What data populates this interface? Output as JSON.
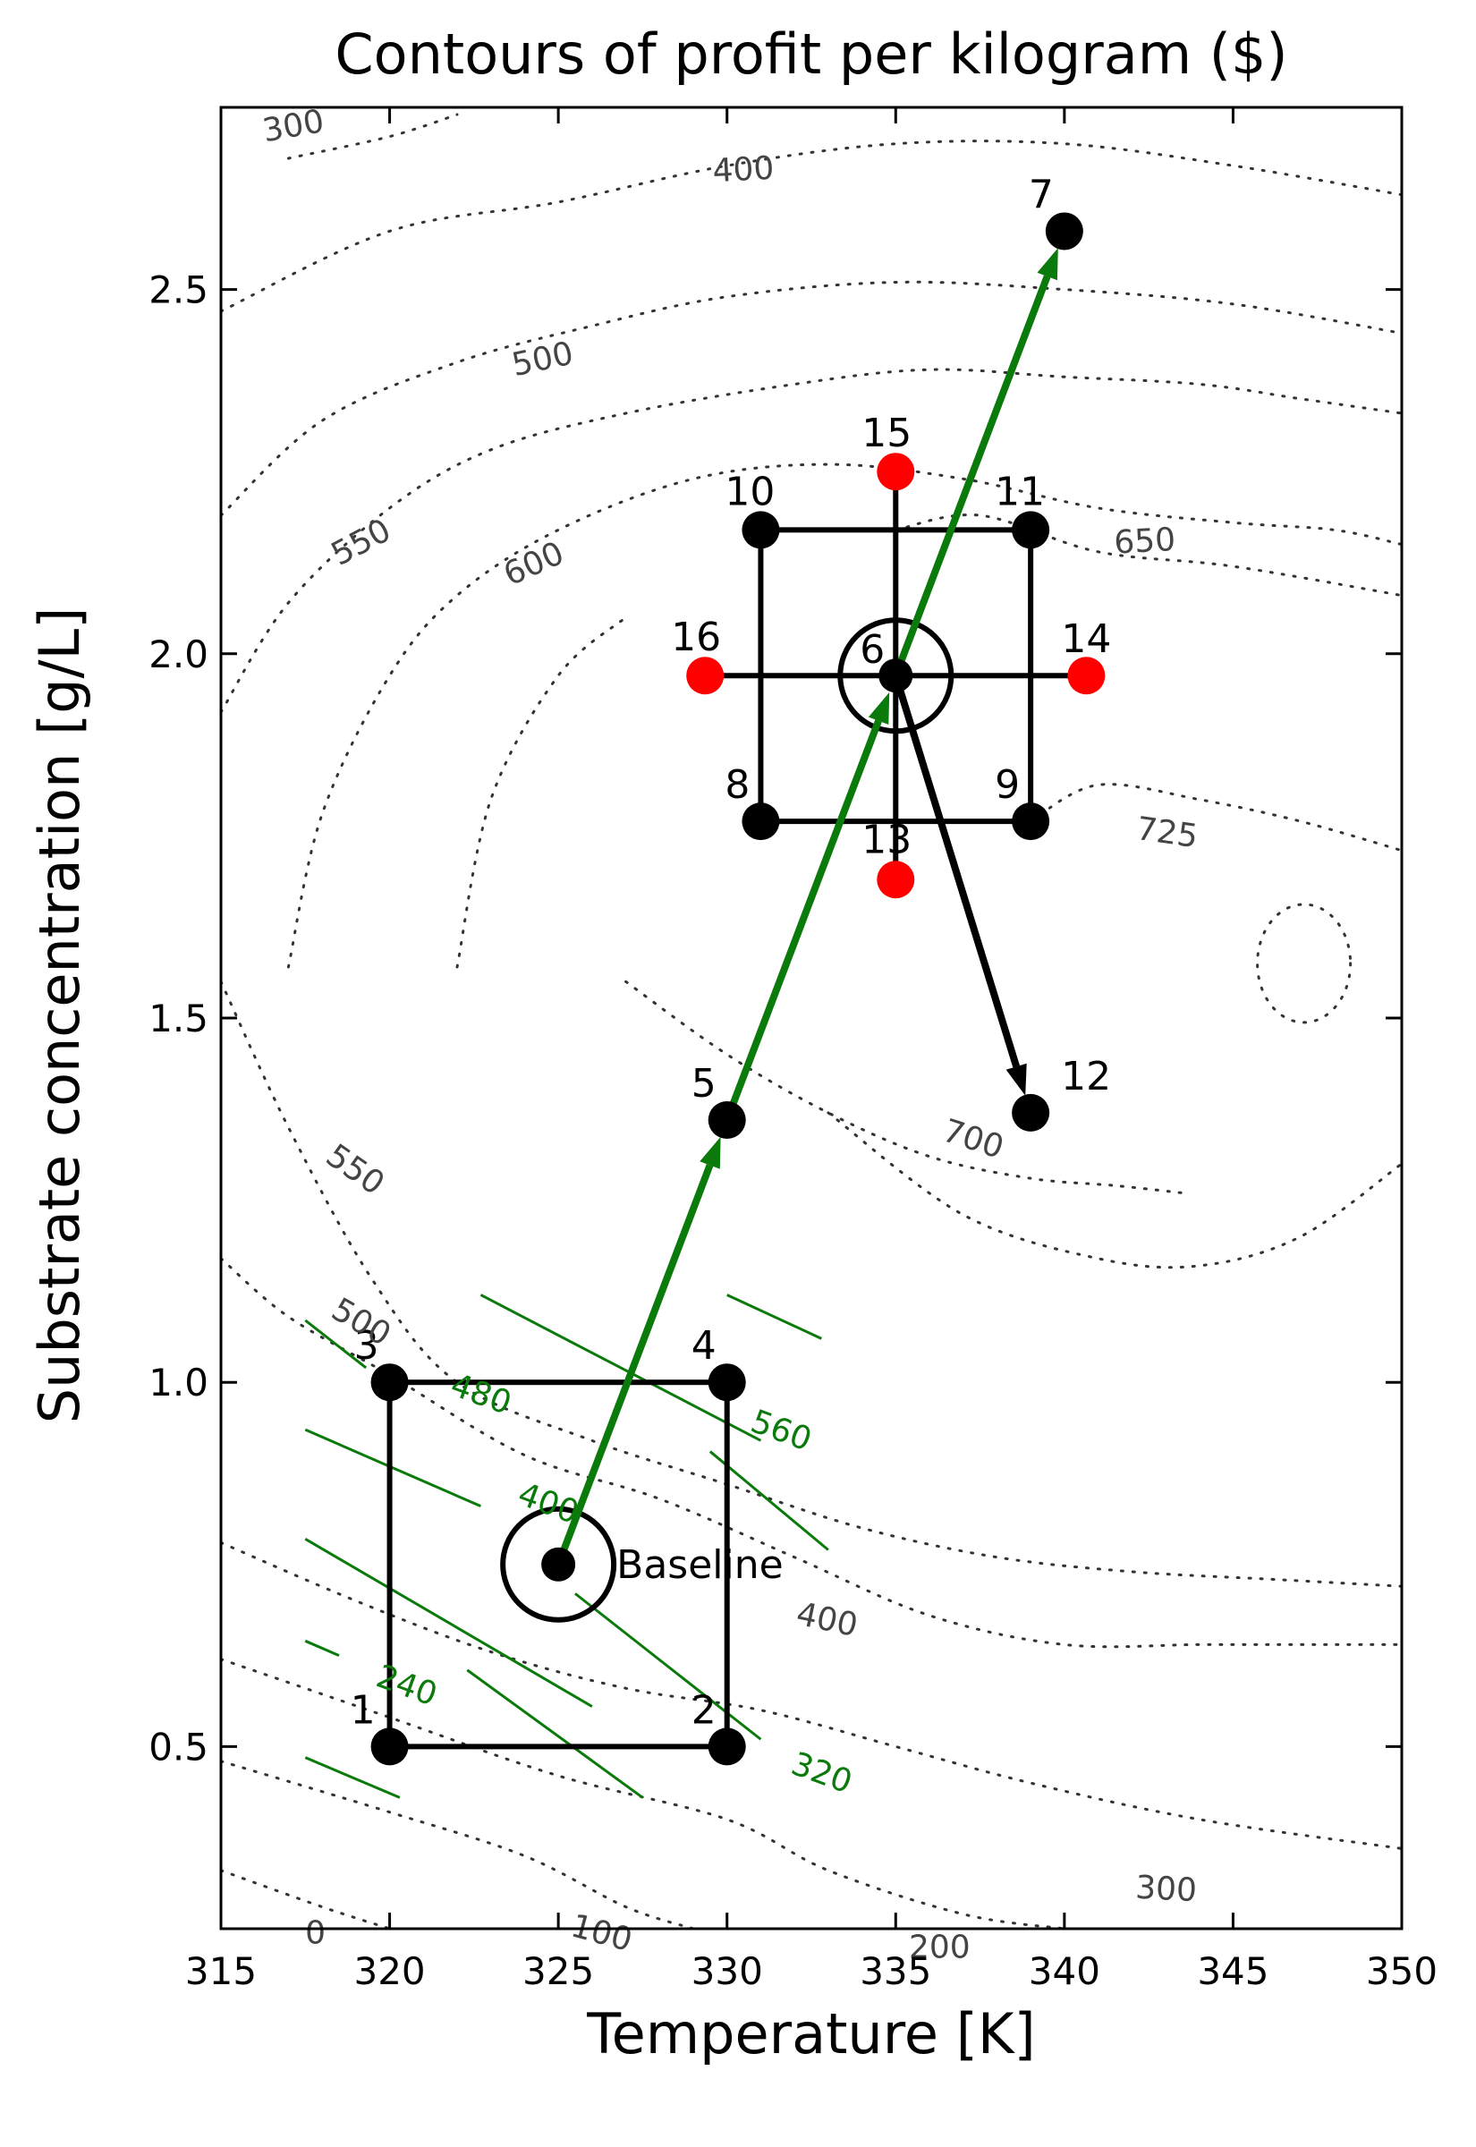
{
  "chart_data": {
    "type": "scatter",
    "title": "Contours of profit per kilogram ($)",
    "xlabel": "Temperature [K]",
    "ylabel": "Substrate concentration [g/L]",
    "xlim": [
      315,
      350
    ],
    "ylim": [
      0.25,
      2.75
    ],
    "xticks": [
      "315",
      "320",
      "325",
      "330",
      "335",
      "340",
      "345",
      "350"
    ],
    "yticks": [
      "0.5",
      "1.0",
      "1.5",
      "2.0",
      "2.5"
    ],
    "grid": false,
    "colors": {
      "factorial_point": "#000000",
      "axial_point": "#ff0000",
      "path_arrow": "#0a7a0a",
      "predicted_contour": "#0a7a0a",
      "true_contour": "#333333"
    },
    "points": [
      {
        "label": "1",
        "x": 320,
        "y": 0.5,
        "type": "factorial"
      },
      {
        "label": "2",
        "x": 330,
        "y": 0.5,
        "type": "factorial"
      },
      {
        "label": "3",
        "x": 320,
        "y": 1.0,
        "type": "factorial"
      },
      {
        "label": "4",
        "x": 330,
        "y": 1.0,
        "type": "factorial"
      },
      {
        "label": "Baseline",
        "x": 325,
        "y": 0.75,
        "type": "center"
      },
      {
        "label": "5",
        "x": 330,
        "y": 1.36,
        "type": "step"
      },
      {
        "label": "6",
        "x": 335,
        "y": 1.97,
        "type": "center"
      },
      {
        "label": "7",
        "x": 340,
        "y": 2.58,
        "type": "step"
      },
      {
        "label": "8",
        "x": 331,
        "y": 1.77,
        "type": "factorial"
      },
      {
        "label": "9",
        "x": 339,
        "y": 1.77,
        "type": "factorial"
      },
      {
        "label": "10",
        "x": 331,
        "y": 2.17,
        "type": "factorial"
      },
      {
        "label": "11",
        "x": 339,
        "y": 2.17,
        "type": "factorial"
      },
      {
        "label": "12",
        "x": 339,
        "y": 1.37,
        "type": "step"
      },
      {
        "label": "13",
        "x": 335,
        "y": 1.69,
        "type": "axial"
      },
      {
        "label": "14",
        "x": 340.65,
        "y": 1.97,
        "type": "axial"
      },
      {
        "label": "15",
        "x": 335,
        "y": 2.25,
        "type": "axial"
      },
      {
        "label": "16",
        "x": 329.35,
        "y": 1.97,
        "type": "axial"
      }
    ],
    "arrows": [
      {
        "from": [
          325,
          0.75
        ],
        "to": [
          330,
          1.36
        ],
        "color": "green"
      },
      {
        "from": [
          330,
          1.36
        ],
        "to": [
          335,
          1.97
        ],
        "color": "green"
      },
      {
        "from": [
          335,
          1.97
        ],
        "to": [
          340,
          2.58
        ],
        "color": "green"
      },
      {
        "from": [
          335,
          1.97
        ],
        "to": [
          339,
          1.37
        ],
        "color": "black"
      }
    ],
    "contour_labels": [
      {
        "text": "300",
        "x": 317.2,
        "y": 2.71,
        "rot": -10
      },
      {
        "text": "400",
        "x": 330.5,
        "y": 2.65,
        "rot": -3
      },
      {
        "text": "500",
        "x": 324.6,
        "y": 2.39,
        "rot": -12
      },
      {
        "text": "550",
        "x": 319.3,
        "y": 2.14,
        "rot": -28
      },
      {
        "text": "600",
        "x": 324.4,
        "y": 2.11,
        "rot": -24
      },
      {
        "text": "650",
        "x": 342.4,
        "y": 2.14,
        "rot": -3
      },
      {
        "text": "725",
        "x": 343.0,
        "y": 1.74,
        "rot": 8
      },
      {
        "text": "700",
        "x": 337.2,
        "y": 1.32,
        "rot": 18
      },
      {
        "text": "550",
        "x": 318.8,
        "y": 1.28,
        "rot": 35
      },
      {
        "text": "500",
        "x": 319.0,
        "y": 1.07,
        "rot": 30
      },
      {
        "text": "400",
        "x": 332.9,
        "y": 0.66,
        "rot": 12
      },
      {
        "text": "300",
        "x": 343.0,
        "y": 0.29,
        "rot": 3
      },
      {
        "text": "200",
        "x": 336.3,
        "y": 0.21,
        "rot": 0
      },
      {
        "text": "100",
        "x": 326.2,
        "y": 0.23,
        "rot": 15
      },
      {
        "text": "0",
        "x": 317.8,
        "y": 0.23,
        "rot": 0
      }
    ],
    "model_contour_labels": [
      {
        "text": "480",
        "x": 322.6,
        "y": 0.97,
        "rot": 20
      },
      {
        "text": "560",
        "x": 331.5,
        "y": 0.92,
        "rot": 20
      },
      {
        "text": "400",
        "x": 324.6,
        "y": 0.82,
        "rot": 20
      },
      {
        "text": "240",
        "x": 320.4,
        "y": 0.57,
        "rot": 20
      },
      {
        "text": "320",
        "x": 332.7,
        "y": 0.45,
        "rot": 20
      }
    ]
  }
}
